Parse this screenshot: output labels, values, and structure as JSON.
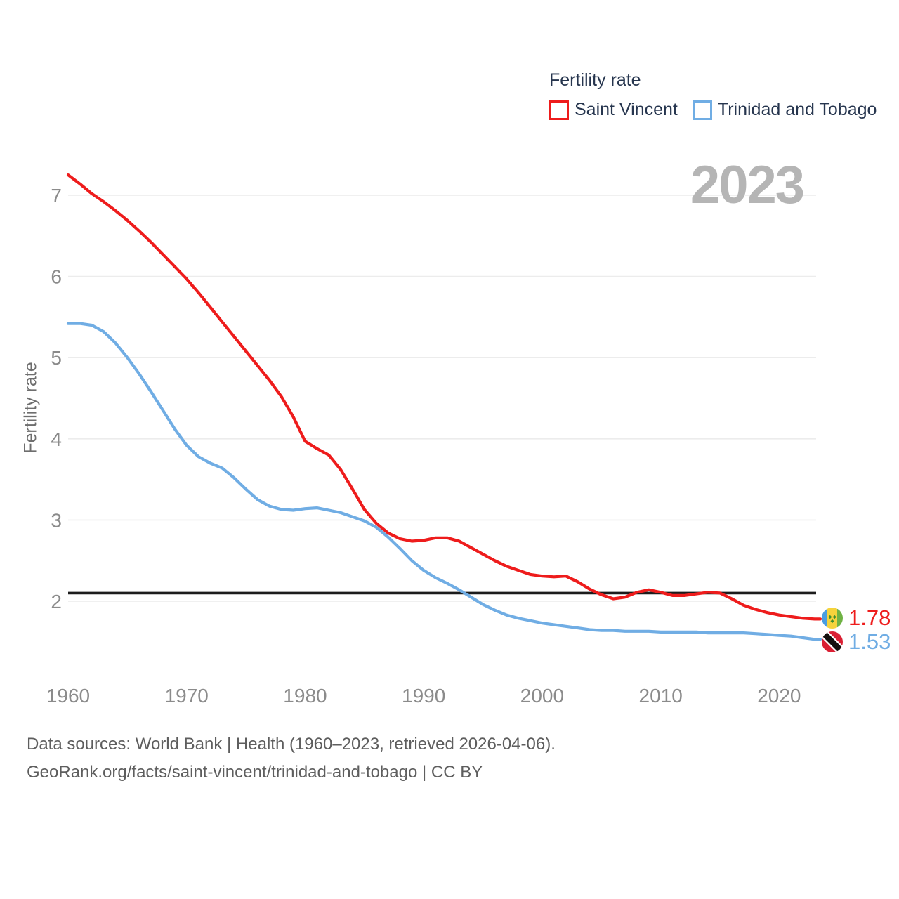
{
  "legend": {
    "title": "Fertility rate"
  },
  "watermark": {
    "text": "2023"
  },
  "footer": {
    "line1": "Data sources: World Bank | Health (1960–2023, retrieved 2026-04-06).",
    "line2": "GeoRank.org/facts/saint-vincent/trinidad-and-tobago | CC BY"
  },
  "chart_data": {
    "type": "line",
    "title": "Fertility rate",
    "ylabel": "Fertility rate",
    "xlabel": "",
    "grid": true,
    "legend_position": "top-right",
    "ylim": [
      1.4,
      7.4
    ],
    "y_ticks": [
      2,
      3,
      4,
      5,
      6,
      7
    ],
    "x_ticks": [
      1960,
      1970,
      1980,
      1990,
      2000,
      2010,
      2020
    ],
    "reference_line": 2.1,
    "years": [
      1960,
      1961,
      1962,
      1963,
      1964,
      1965,
      1966,
      1967,
      1968,
      1969,
      1970,
      1971,
      1972,
      1973,
      1974,
      1975,
      1976,
      1977,
      1978,
      1979,
      1980,
      1981,
      1982,
      1983,
      1984,
      1985,
      1986,
      1987,
      1988,
      1989,
      1990,
      1991,
      1992,
      1993,
      1994,
      1995,
      1996,
      1997,
      1998,
      1999,
      2000,
      2001,
      2002,
      2003,
      2004,
      2005,
      2006,
      2007,
      2008,
      2009,
      2010,
      2011,
      2012,
      2013,
      2014,
      2015,
      2016,
      2017,
      2018,
      2019,
      2020,
      2021,
      2022,
      2023
    ],
    "series": [
      {
        "name": "Saint Vincent",
        "color": "#ee1c1c",
        "end_label": "1.78",
        "values": [
          7.25,
          7.14,
          7.02,
          6.92,
          6.81,
          6.69,
          6.56,
          6.42,
          6.27,
          6.12,
          5.97,
          5.8,
          5.62,
          5.44,
          5.26,
          5.08,
          4.9,
          4.72,
          4.52,
          4.27,
          3.97,
          3.88,
          3.8,
          3.62,
          3.38,
          3.13,
          2.96,
          2.84,
          2.77,
          2.74,
          2.75,
          2.78,
          2.78,
          2.74,
          2.66,
          2.58,
          2.5,
          2.43,
          2.38,
          2.33,
          2.31,
          2.3,
          2.31,
          2.24,
          2.15,
          2.08,
          2.03,
          2.05,
          2.11,
          2.14,
          2.11,
          2.07,
          2.07,
          2.09,
          2.11,
          2.1,
          2.03,
          1.95,
          1.9,
          1.86,
          1.83,
          1.81,
          1.79,
          1.78
        ]
      },
      {
        "name": "Trinidad and Tobago",
        "color": "#70ade4",
        "end_label": "1.53",
        "values": [
          5.42,
          5.42,
          5.4,
          5.32,
          5.18,
          5.0,
          4.8,
          4.58,
          4.35,
          4.12,
          3.92,
          3.78,
          3.7,
          3.64,
          3.52,
          3.38,
          3.25,
          3.17,
          3.13,
          3.12,
          3.14,
          3.15,
          3.12,
          3.09,
          3.04,
          2.99,
          2.91,
          2.79,
          2.65,
          2.5,
          2.38,
          2.29,
          2.22,
          2.14,
          2.05,
          1.96,
          1.89,
          1.83,
          1.79,
          1.76,
          1.73,
          1.71,
          1.69,
          1.67,
          1.65,
          1.64,
          1.64,
          1.63,
          1.63,
          1.63,
          1.62,
          1.62,
          1.62,
          1.62,
          1.61,
          1.61,
          1.61,
          1.61,
          1.6,
          1.59,
          1.58,
          1.57,
          1.55,
          1.53
        ]
      }
    ]
  }
}
